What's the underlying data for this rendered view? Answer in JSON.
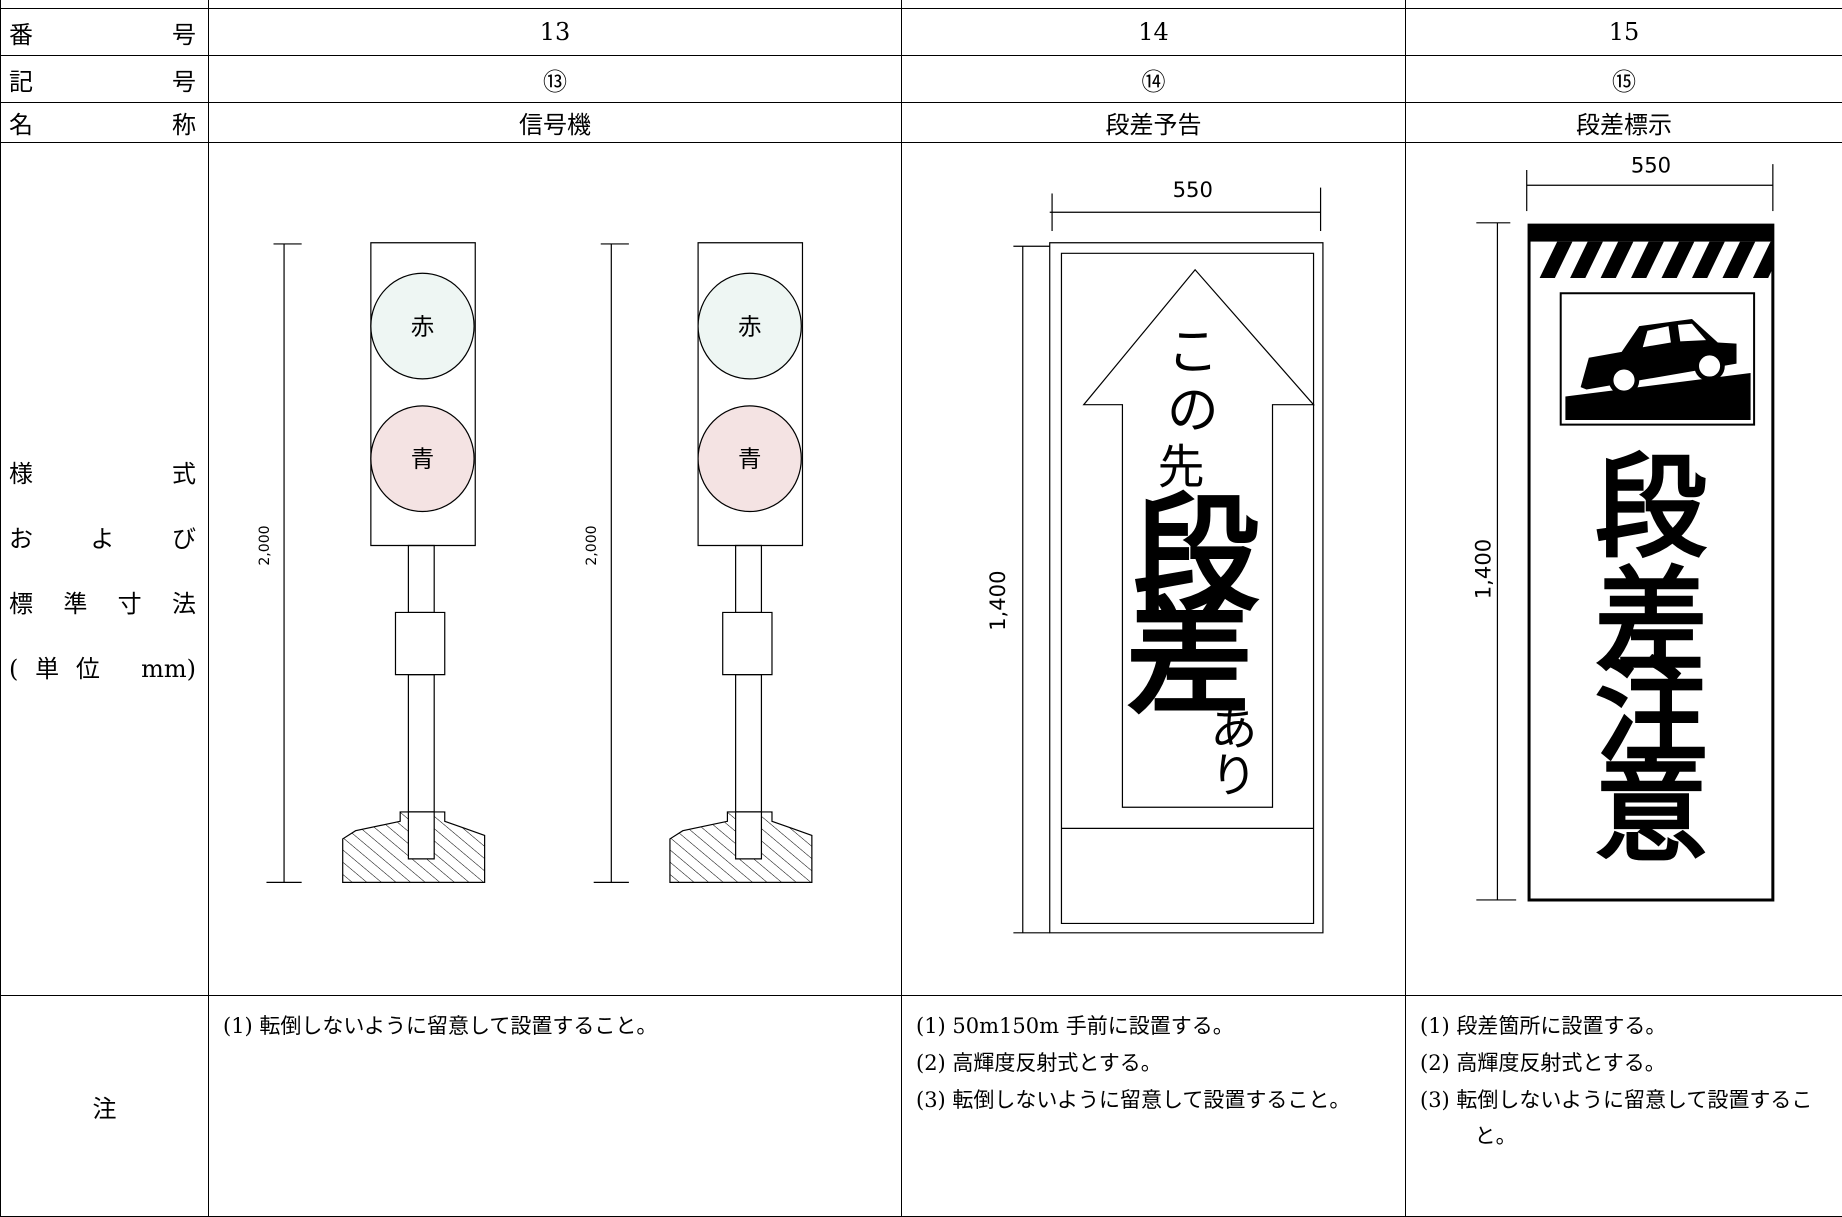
{
  "table": {
    "row_labels": {
      "number": "番号",
      "symbol": "記号",
      "name": "名称",
      "style": [
        "様式",
        "および",
        "標準寸法",
        "(単位 mm)"
      ],
      "notes": "注"
    },
    "columns": [
      {
        "number": "13",
        "symbol": "⑬",
        "name": "信号機",
        "notes": [
          "(1) 転倒しないように留意して設置すること。"
        ]
      },
      {
        "number": "14",
        "symbol": "⑭",
        "name": "段差予告",
        "notes": [
          "(1) 50m150m 手前に設置する。",
          "(2) 高輝度反射式とする。",
          "(3) 転倒しないように留意して設置すること。"
        ]
      },
      {
        "number": "15",
        "symbol": "⑮",
        "name": "段差標示",
        "notes": [
          "(1) 段差箇所に設置する。",
          "(2) 高輝度反射式とする。",
          "(3) 転倒しないように留意して設置すること。"
        ]
      }
    ]
  },
  "drawings": {
    "signal": {
      "red": "赤",
      "green": "青",
      "height": "2,000"
    },
    "notice": {
      "width": "550",
      "height": "1,400",
      "text": [
        "こ",
        "の",
        "先",
        "段",
        "差",
        "あ",
        "り"
      ]
    },
    "marker": {
      "width": "550",
      "height": "1,400",
      "text": [
        "段",
        "差",
        "注",
        "意"
      ]
    }
  }
}
